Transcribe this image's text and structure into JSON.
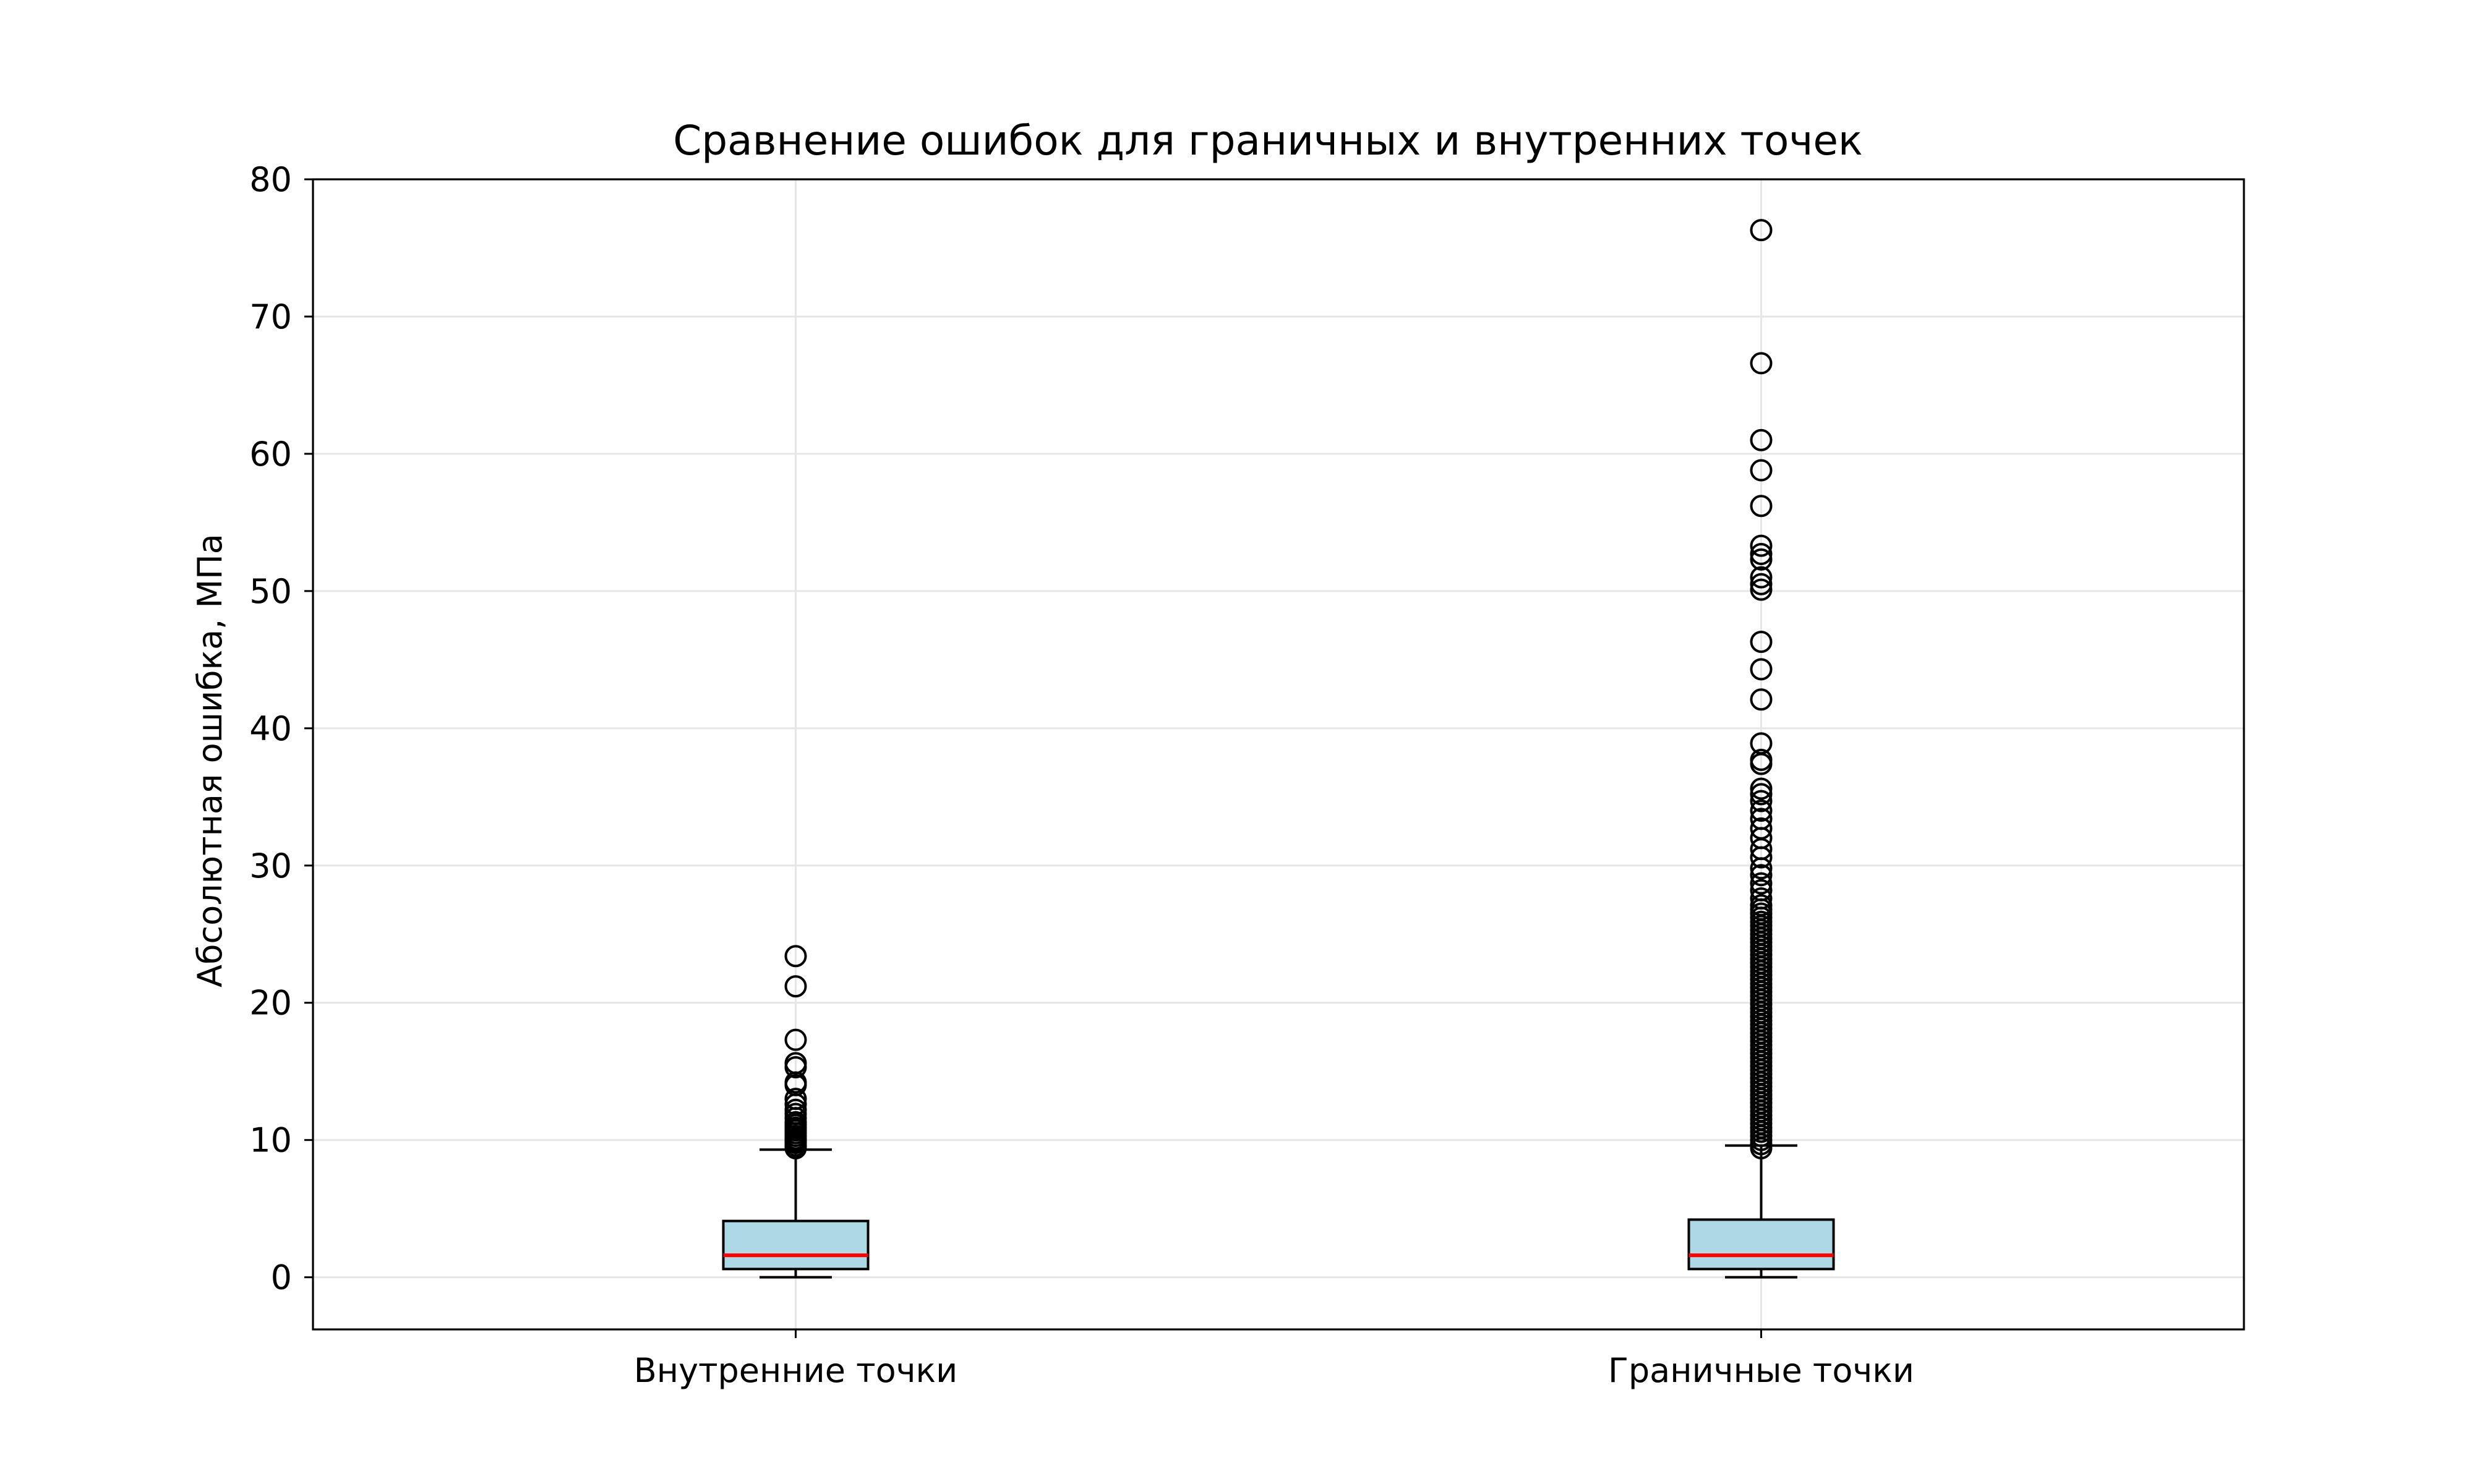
{
  "chart_data": {
    "type": "box",
    "title": "Сравнение ошибок для граничных и внутренних точек",
    "xlabel": "",
    "ylabel": "Абсолютная ошибка, МПа",
    "ylim": [
      -3.8,
      80
    ],
    "yticks": [
      0,
      10,
      20,
      30,
      40,
      50,
      60,
      70,
      80
    ],
    "grid": true,
    "colors": {
      "box_fill": "#add8e6",
      "median": "#ff0000",
      "grid": "#e6e6e6",
      "edge": "#000000"
    },
    "categories": [
      "Внутренние точки",
      "Граничные точки"
    ],
    "boxes": [
      {
        "whisker_low": 0.0,
        "q1": 0.6,
        "median": 1.6,
        "q3": 4.1,
        "whisker_high": 9.3,
        "outliers": [
          9.4,
          9.5,
          9.6,
          9.8,
          9.9,
          10.0,
          10.1,
          10.3,
          10.5,
          10.7,
          10.9,
          11.1,
          11.3,
          11.6,
          11.9,
          12.2,
          12.6,
          13.0,
          14.0,
          14.2,
          15.3,
          15.6,
          17.3,
          21.2,
          23.4
        ]
      },
      {
        "whisker_low": 0.0,
        "q1": 0.6,
        "median": 1.6,
        "q3": 4.2,
        "whisker_high": 9.6,
        "outliers": [
          9.4,
          9.7,
          10.0,
          10.3,
          10.6,
          10.9,
          11.2,
          11.5,
          11.8,
          12.1,
          12.4,
          12.7,
          13.0,
          13.3,
          13.6,
          13.9,
          14.2,
          14.5,
          14.8,
          15.1,
          15.4,
          15.7,
          16.0,
          16.3,
          16.6,
          16.9,
          17.2,
          17.5,
          17.8,
          18.1,
          18.4,
          18.7,
          19.0,
          19.3,
          19.6,
          19.9,
          20.2,
          20.5,
          20.8,
          21.1,
          21.4,
          21.7,
          22.0,
          22.3,
          22.6,
          22.9,
          23.2,
          23.5,
          23.8,
          24.1,
          24.4,
          24.7,
          25.0,
          25.3,
          25.6,
          25.9,
          26.2,
          26.5,
          26.8,
          27.1,
          27.6,
          28.2,
          28.7,
          29.3,
          29.8,
          30.6,
          31.2,
          32.0,
          32.7,
          33.4,
          34.0,
          34.7,
          35.2,
          35.6,
          37.4,
          37.7,
          38.9,
          42.1,
          44.3,
          46.3,
          50.1,
          50.5,
          51.0,
          52.3,
          52.7,
          53.3,
          56.2,
          58.8,
          61.0,
          66.6,
          76.3
        ]
      }
    ]
  }
}
